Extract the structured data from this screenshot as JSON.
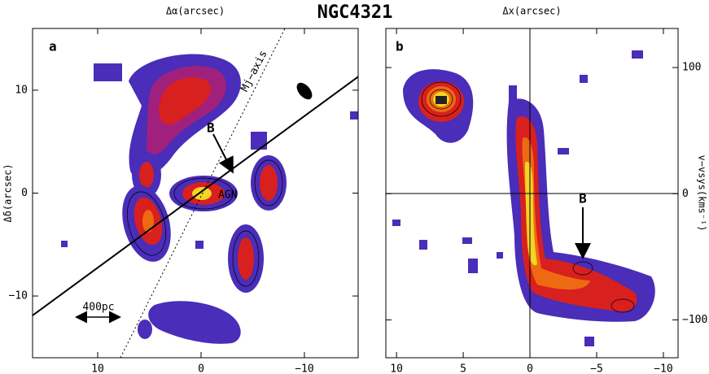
{
  "chart_data": [
    {
      "type": "image",
      "title": "NGC4321",
      "panel_label": "a",
      "xlabel": "Δα(arcsec)",
      "ylabel": "Δδ(arcsec)",
      "xlim": [
        16.3,
        -15.2
      ],
      "ylim": [
        -16,
        16
      ],
      "xticks": [
        10,
        0,
        {
          "value": -10,
          "label": "−10"
        }
      ],
      "yticks": [
        {
          "value": -10,
          "label": "−10"
        },
        0,
        10
      ],
      "annotations": [
        "B",
        "AGN",
        "Mj−axis",
        "400pc"
      ]
    },
    {
      "type": "image",
      "panel_label": "b",
      "xlabel": "Δx(arcsec)",
      "y2label": "v−vsys(kms⁻¹)",
      "xlim": [
        10.8,
        -11.1
      ],
      "y2lim": [
        -130,
        131
      ],
      "xticks": [
        10,
        5,
        0,
        {
          "value": -5,
          "label": "−5"
        },
        {
          "value": -10,
          "label": "−10"
        }
      ],
      "y2ticks": [
        {
          "value": -100,
          "label": "−100"
        },
        0,
        100
      ],
      "annotations": [
        "B"
      ]
    }
  ]
}
